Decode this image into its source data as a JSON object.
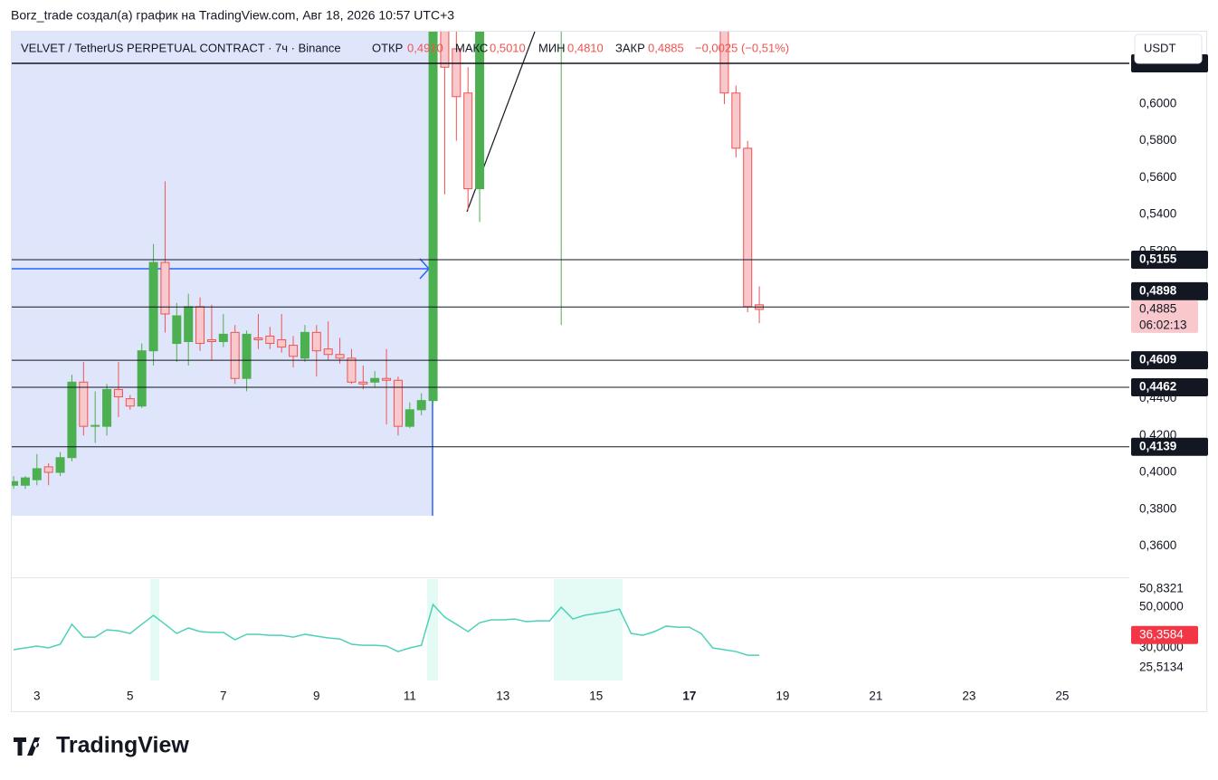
{
  "header": {
    "text": "Borz_trade создал(а) график на TradingView.com, Авг 18, 2026 10:57 UTC+3"
  },
  "legend": {
    "symbol": "VELVET / TetherUS PERPETUAL CONTRACT · 7ч · Binance",
    "open_label": "ОТКР",
    "open": "0,4910",
    "high_label": "МАКС",
    "high": "0,5010",
    "low_label": "МИН",
    "low": "0,4810",
    "close_label": "ЗАКР",
    "close": "0,4885",
    "change": "−0,0025 (−0,51%)"
  },
  "currency": "USDT",
  "footer": {
    "brand": "TradingView"
  },
  "chart_data": [
    {
      "type": "candlestick",
      "x": [
        2.5,
        2.75,
        3.0,
        3.25,
        3.5,
        3.75,
        4.0,
        4.25,
        4.5,
        4.75,
        5.0,
        5.25,
        5.5,
        5.75,
        6.0,
        6.25,
        6.5,
        6.75,
        7.0,
        7.25,
        7.5,
        7.75,
        8.0,
        8.25,
        8.5,
        8.75,
        9.0,
        9.25,
        9.5,
        9.75,
        10.0,
        10.25,
        10.5,
        10.75,
        11.0,
        11.25,
        11.5,
        11.75,
        12.0,
        12.25,
        12.5,
        14.25,
        17.75,
        18.0,
        18.25,
        18.5
      ],
      "open": [
        0.393,
        0.393,
        0.396,
        0.403,
        0.4,
        0.408,
        0.449,
        0.425,
        0.425,
        0.445,
        0.44,
        0.436,
        0.466,
        0.514,
        0.47,
        0.471,
        0.49,
        0.472,
        0.471,
        0.476,
        0.451,
        0.473,
        0.474,
        0.472,
        0.469,
        0.462,
        0.476,
        0.467,
        0.464,
        0.462,
        0.449,
        0.449,
        0.451,
        0.45,
        0.425,
        0.434,
        0.439,
        0.66,
        0.63,
        0.606,
        0.554,
        0.66,
        0.65,
        0.606,
        0.576,
        0.491
      ],
      "high": [
        0.398,
        0.398,
        0.41,
        0.405,
        0.411,
        0.453,
        0.46,
        0.444,
        0.448,
        0.46,
        0.442,
        0.47,
        0.524,
        0.558,
        0.492,
        0.497,
        0.495,
        0.491,
        0.486,
        0.48,
        0.477,
        0.486,
        0.479,
        0.486,
        0.474,
        0.48,
        0.48,
        0.482,
        0.473,
        0.467,
        0.458,
        0.455,
        0.467,
        0.452,
        0.438,
        0.443,
        0.72,
        0.7,
        0.65,
        0.62,
        0.68,
        0.7,
        0.66,
        0.61,
        0.58,
        0.501
      ],
      "low": [
        0.391,
        0.391,
        0.393,
        0.393,
        0.398,
        0.406,
        0.42,
        0.416,
        0.42,
        0.43,
        0.434,
        0.435,
        0.458,
        0.476,
        0.46,
        0.458,
        0.466,
        0.461,
        0.468,
        0.448,
        0.444,
        0.467,
        0.467,
        0.465,
        0.457,
        0.46,
        0.452,
        0.461,
        0.459,
        0.448,
        0.445,
        0.446,
        0.426,
        0.42,
        0.424,
        0.431,
        0.437,
        0.551,
        0.58,
        0.542,
        0.536,
        0.48,
        0.6,
        0.571,
        0.487,
        0.481
      ],
      "close": [
        0.395,
        0.397,
        0.402,
        0.4,
        0.408,
        0.449,
        0.425,
        0.4255,
        0.445,
        0.441,
        0.436,
        0.466,
        0.514,
        0.486,
        0.485,
        0.49,
        0.47,
        0.471,
        0.475,
        0.451,
        0.475,
        0.472,
        0.47,
        0.468,
        0.463,
        0.476,
        0.466,
        0.464,
        0.462,
        0.449,
        0.448,
        0.451,
        0.45,
        0.425,
        0.434,
        0.439,
        0.7,
        0.62,
        0.604,
        0.554,
        0.66,
        0.68,
        0.606,
        0.576,
        0.49,
        0.4885
      ],
      "up_color": "#4caf50",
      "down_color": "#ef5350",
      "down_fill": "#f8c8cd",
      "xlim": [
        2.46,
        26.44
      ],
      "xticks": [
        3,
        5,
        7,
        9,
        11,
        13,
        15,
        17,
        19,
        21,
        23,
        25
      ],
      "xtick_bold": 17,
      "ylim": [
        0.3435,
        0.6393
      ],
      "yticks": [
        {
          "value": 0.36,
          "label": "0,3600"
        },
        {
          "value": 0.38,
          "label": "0,3800"
        },
        {
          "value": 0.4,
          "label": "0,4000"
        },
        {
          "value": 0.42,
          "label": "0,4200"
        },
        {
          "value": 0.44,
          "label": "0,4400"
        },
        {
          "value": 0.52,
          "label": "0,5200"
        },
        {
          "value": 0.54,
          "label": "0,5400"
        },
        {
          "value": 0.56,
          "label": "0,5600"
        },
        {
          "value": 0.58,
          "label": "0,5800"
        },
        {
          "value": 0.6,
          "label": "0,6000"
        }
      ],
      "levels": [
        0.6221,
        0.5155,
        0.4898,
        0.4609,
        0.4462,
        0.4139
      ],
      "level_labels": [
        null,
        "0,5155",
        "0,4898",
        "0,4609",
        "0,4462",
        "0,4139"
      ],
      "last_price_label": "0,4885",
      "countdown": "06:02:13"
    },
    {
      "type": "line",
      "x": [
        2.5,
        2.75,
        3.0,
        3.25,
        3.5,
        3.75,
        4.0,
        4.25,
        4.5,
        4.75,
        5.0,
        5.25,
        5.5,
        5.75,
        6.0,
        6.25,
        6.5,
        6.75,
        7.0,
        7.25,
        7.5,
        7.75,
        8.0,
        8.25,
        8.5,
        8.75,
        9.0,
        9.25,
        9.5,
        9.75,
        10.0,
        10.25,
        10.5,
        10.75,
        11.0,
        11.25,
        11.5,
        11.75,
        12.0,
        12.25,
        12.5,
        12.75,
        13.0,
        13.25,
        13.5,
        13.75,
        14.0,
        14.25,
        14.5,
        14.75,
        15.0,
        15.25,
        15.5,
        15.75,
        16.0,
        16.25,
        16.5,
        16.75,
        17.0,
        17.25,
        17.5,
        17.75,
        18.0,
        18.25,
        18.5
      ],
      "values": [
        29.1,
        30,
        30.9,
        30,
        31.8,
        41.6,
        35.3,
        35.3,
        38.9,
        38.4,
        37.1,
        41.6,
        46,
        41.6,
        37.1,
        39.8,
        38,
        37.6,
        37.6,
        34,
        36.7,
        36.7,
        36.2,
        36.2,
        35.3,
        36.7,
        35.8,
        34.9,
        34.4,
        31.8,
        31.3,
        31.3,
        30.9,
        28.2,
        30,
        31.3,
        51.3,
        45.1,
        41.6,
        38,
        42.4,
        43.8,
        43.8,
        44.2,
        42.9,
        43.3,
        43.3,
        50,
        44.2,
        46,
        46.9,
        47.8,
        49.1,
        37.1,
        36.2,
        38,
        40.7,
        40.2,
        40.2,
        37.1,
        30,
        29.1,
        28.2,
        26.4,
        26.4
      ],
      "color": "#4fd1b8",
      "ylim": [
        14,
        63.8
      ],
      "yticks": [
        {
          "value": 30,
          "label": "30,0000"
        },
        {
          "value": 50,
          "label": "50,0000"
        }
      ],
      "marker_labels": [
        {
          "value": 50.8321,
          "label": "50,8321"
        },
        {
          "value": 36.3584,
          "label": "36,3584"
        },
        {
          "value": 25.5134,
          "label": "25,5134"
        }
      ]
    }
  ]
}
